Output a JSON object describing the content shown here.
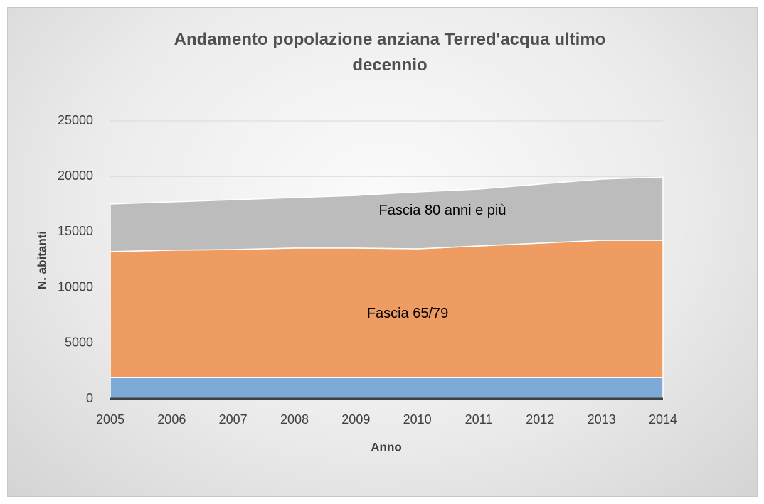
{
  "chart_data": {
    "type": "area",
    "stacked": true,
    "title": "Andamento popolazione anziana Terred'acqua ultimo decennio",
    "x_label": "Anno",
    "y_label": "N. abitanti",
    "categories": [
      "2005",
      "2006",
      "2007",
      "2008",
      "2009",
      "2010",
      "2011",
      "2012",
      "2013",
      "2014"
    ],
    "series": [
      {
        "color": "#7eaad8",
        "values": [
          1900,
          1900,
          1900,
          1900,
          1900,
          1900,
          1900,
          1900,
          1900,
          1900
        ]
      },
      {
        "name": "Fascia 65/79",
        "color": "#ef9c62",
        "values": [
          11340,
          11470,
          11530,
          11660,
          11660,
          11590,
          11850,
          12100,
          12360,
          12360
        ]
      },
      {
        "name": "Fascia 80 anni e più",
        "color": "#bcbcbc",
        "values": [
          4280,
          4340,
          4470,
          4540,
          4730,
          5120,
          5110,
          5310,
          5500,
          5690
        ]
      }
    ],
    "ylim": [
      0,
      25000
    ],
    "yticks": [
      0,
      5000,
      10000,
      15000,
      20000,
      25000
    ],
    "grid": true
  }
}
